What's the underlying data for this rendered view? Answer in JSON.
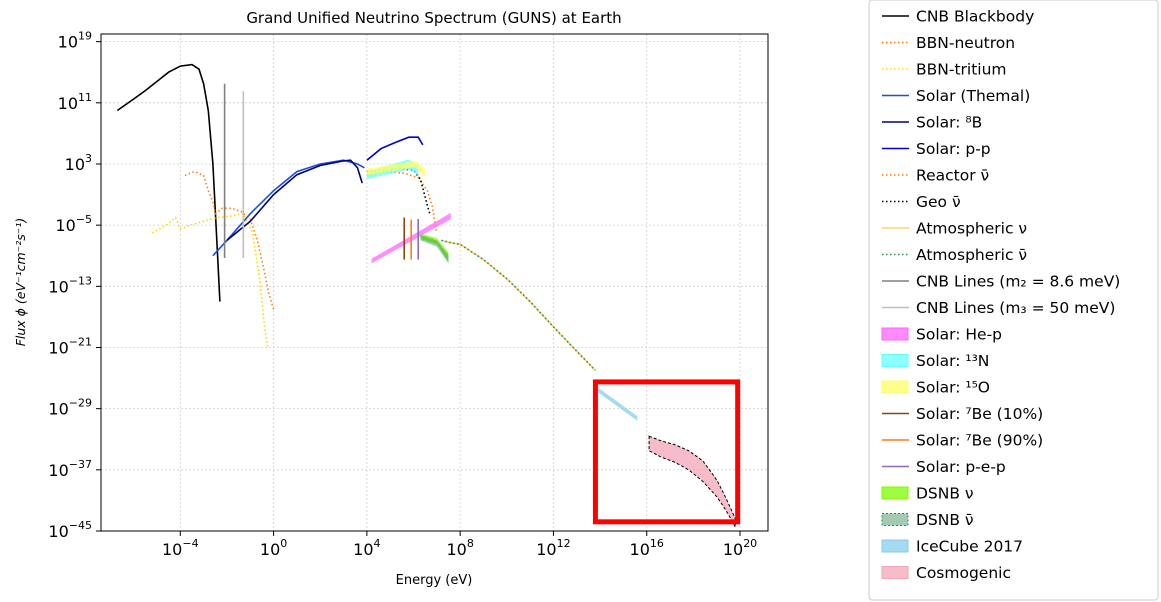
{
  "chart_data": {
    "type": "line",
    "title": "Grand Unified Neutrino Spectrum (GUNS) at Earth",
    "xlabel": "Energy (eV)",
    "ylabel": "Flux ϕ  (eV⁻¹cm⁻²s⁻¹)",
    "xscale": "log",
    "yscale": "log",
    "xlim_exp": [
      -7.4,
      21.2
    ],
    "ylim_exp": [
      -45,
      20
    ],
    "xticks": [
      {
        "base": "10",
        "exp": "−4",
        "v": -4
      },
      {
        "base": "10",
        "exp": "0",
        "v": 0
      },
      {
        "base": "10",
        "exp": "4",
        "v": 4
      },
      {
        "base": "10",
        "exp": "8",
        "v": 8
      },
      {
        "base": "10",
        "exp": "12",
        "v": 12
      },
      {
        "base": "10",
        "exp": "16",
        "v": 16
      },
      {
        "base": "10",
        "exp": "20",
        "v": 20
      }
    ],
    "yticks": [
      {
        "base": "10",
        "exp": "19",
        "v": 19
      },
      {
        "base": "10",
        "exp": "11",
        "v": 11
      },
      {
        "base": "10",
        "exp": "3",
        "v": 3
      },
      {
        "base": "10",
        "exp": "−5",
        "v": -5
      },
      {
        "base": "10",
        "exp": "−13",
        "v": -13
      },
      {
        "base": "10",
        "exp": "−21",
        "v": -21
      },
      {
        "base": "10",
        "exp": "−29",
        "v": -29
      },
      {
        "base": "10",
        "exp": "−37",
        "v": -37
      },
      {
        "base": "10",
        "exp": "−45",
        "v": -45
      }
    ],
    "grid": true,
    "legend_position": "outside-right",
    "highlight_box": {
      "x_exp": [
        13.8,
        19.9
      ],
      "y_exp": [
        -43.8,
        -25.5
      ],
      "color": "#ff0000"
    },
    "series": [
      {
        "name": "CNB Blackbody",
        "color": "#000000",
        "style": "solid",
        "x_exp": [
          -6.7,
          -6,
          -5.5,
          -5,
          -4.5,
          -4,
          -3.5,
          -3.2,
          -3,
          -2.8,
          -2.6,
          -2.4,
          -2.3
        ],
        "y_exp": [
          10,
          11.5,
          12.6,
          13.8,
          15,
          15.8,
          16,
          15.4,
          13.5,
          10,
          3,
          -9,
          -15
        ]
      },
      {
        "name": "BBN-neutron",
        "color": "#ff7f0e",
        "style": "dotted",
        "x_exp": [
          -3.8,
          -3.4,
          -3,
          -2.8,
          -2.6,
          -2.5,
          -2.2,
          -1.8,
          -1.4,
          -1,
          -0.7,
          -0.4,
          -0.2,
          0
        ],
        "y_exp": [
          1.5,
          2,
          1.5,
          -0.5,
          -2,
          -3.5,
          -2.8,
          -2.8,
          -3.2,
          -4.2,
          -7,
          -11,
          -14,
          -16
        ]
      },
      {
        "name": "BBN-tritium",
        "color": "#ffd700",
        "style": "dotted",
        "x_exp": [
          -5.2,
          -4.6,
          -4.2,
          -4.0,
          -3.6,
          -3,
          -2.4,
          -1.8,
          -1.3,
          -0.9,
          -0.6,
          -0.4,
          -0.25
        ],
        "y_exp": [
          -6,
          -5,
          -4,
          -5.5,
          -5,
          -4.5,
          -4,
          -3.8,
          -3.5,
          -6,
          -12,
          -18,
          -21
        ]
      },
      {
        "name": "Solar (Themal)",
        "color": "#1f4fd1",
        "style": "solid",
        "x_exp": [
          -2.6,
          -2,
          -1,
          0,
          1,
          2,
          3,
          3.6,
          3.9
        ],
        "y_exp": [
          -9,
          -7,
          -3.5,
          -0.5,
          2,
          3,
          3.5,
          3,
          2.5
        ]
      },
      {
        "name": "Solar: ⁸B",
        "color": "#000080",
        "style": "solid",
        "x_exp": [
          -2,
          -1,
          0,
          1,
          2,
          3,
          3.3,
          3.6,
          3.8
        ],
        "y_exp": [
          -7,
          -4.5,
          -1,
          1.6,
          2.8,
          3.4,
          3.5,
          2.5,
          0.5
        ]
      },
      {
        "name": "Solar: p-p",
        "color": "#0000cd",
        "style": "solid",
        "x_exp": [
          4,
          4.6,
          5.2,
          5.8,
          6.2,
          6.4
        ],
        "y_exp": [
          3.5,
          5,
          5.8,
          6.5,
          6.5,
          5.5
        ]
      },
      {
        "name": "Reactor ν̄",
        "color": "#ff7f0e",
        "style": "dotted",
        "x_exp": [
          4,
          4.8,
          5.6,
          6.2,
          6.6,
          6.8,
          7.0
        ],
        "y_exp": [
          1.5,
          2,
          1.8,
          1.2,
          -0.5,
          -2.5,
          -6
        ]
      },
      {
        "name": "Geo ν̄",
        "color": "#000000",
        "style": "dotted",
        "x_exp": [
          4,
          4.8,
          5.4,
          6,
          6.3,
          6.6,
          6.7
        ],
        "y_exp": [
          2,
          2.2,
          2.4,
          2.2,
          1,
          -2.5,
          -3.5
        ]
      },
      {
        "name": "Atmospheric ν",
        "color": "#ffd36b",
        "style": "solid",
        "x_exp": [
          7.2,
          7.6,
          8,
          9,
          10,
          11,
          12,
          13,
          13.8
        ],
        "y_exp": [
          -7,
          -7.3,
          -7.5,
          -9.5,
          -12,
          -15,
          -18.3,
          -21.5,
          -24
        ]
      },
      {
        "name": "Atmospheric ν̄",
        "color": "#2e8b57",
        "style": "dotted",
        "x_exp": [
          7.2,
          7.6,
          8,
          9,
          10,
          11,
          12,
          13,
          13.8
        ],
        "y_exp": [
          -7,
          -7.3,
          -7.5,
          -9.5,
          -12,
          -15,
          -18.3,
          -21.5,
          -24
        ]
      },
      {
        "name": "CNB Lines (m₂ = 8.6 meV)",
        "color": "#808080",
        "style": "solid",
        "x_exp": [
          -2.1,
          -2.1
        ],
        "y_exp": [
          -9.3,
          13.5
        ]
      },
      {
        "name": "CNB Lines (m₃ = 50 meV)",
        "color": "#c0c0c0",
        "style": "solid",
        "x_exp": [
          -1.3,
          -1.3
        ],
        "y_exp": [
          -9.3,
          12.5
        ]
      },
      {
        "name": "Solar: He-p",
        "color": "#ff66ff",
        "style": "band",
        "x_exp": [
          4.2,
          7.6
        ],
        "y_lo": [
          -10,
          -4.2
        ],
        "y_hi": [
          -9.4,
          -3.4
        ]
      },
      {
        "name": "Solar: ¹³N",
        "color": "#66ffff",
        "style": "band",
        "x_exp": [
          4,
          5.8,
          6.2
        ],
        "y_lo": [
          1,
          2.3,
          1.5
        ],
        "y_hi": [
          2,
          3.6,
          2.8
        ]
      },
      {
        "name": "Solar: ¹⁵O",
        "color": "#ffff66",
        "style": "band",
        "x_exp": [
          4,
          6.1,
          6.5
        ],
        "y_lo": [
          1.5,
          2.6,
          1.2
        ],
        "y_hi": [
          2.4,
          3.4,
          2.4
        ]
      },
      {
        "name": "Solar: ⁷Be (10%)",
        "color": "#8b4513",
        "style": "solid",
        "x_exp": [
          5.6,
          5.6
        ],
        "y_exp": [
          -9.5,
          -4
        ]
      },
      {
        "name": "Solar: ⁷Be (90%)",
        "color": "#ff7f0e",
        "style": "solid",
        "x_exp": [
          5.9,
          5.9
        ],
        "y_exp": [
          -9.5,
          -4.3
        ]
      },
      {
        "name": "Solar: p-e-p",
        "color": "#9467bd",
        "style": "solid",
        "x_exp": [
          6.2,
          6.2
        ],
        "y_exp": [
          -9.5,
          -4.2
        ]
      },
      {
        "name": "DSNB ν",
        "color": "#7cfc00",
        "style": "band",
        "x_exp": [
          6.3,
          7,
          7.5
        ],
        "y_lo": [
          -6.8,
          -7.5,
          -9.8
        ],
        "y_hi": [
          -6.1,
          -6.7,
          -8.6
        ]
      },
      {
        "name": "DSNB ν̄",
        "color": "#2e8b57",
        "style": "band-dotted",
        "x_exp": [
          6.3,
          7,
          7.5
        ],
        "y_lo": [
          -7.0,
          -7.8,
          -10.0
        ],
        "y_hi": [
          -6.3,
          -7.0,
          -8.9
        ]
      },
      {
        "name": "IceCube 2017",
        "color": "#87ceeb",
        "style": "band",
        "x_exp": [
          13.8,
          15.6
        ],
        "y_lo": [
          -26.6,
          -30.6
        ],
        "y_hi": [
          -26.0,
          -30.0
        ]
      },
      {
        "name": "Cosmogenic",
        "color": "#f4a6b8",
        "style": "band",
        "x_exp": [
          16.1,
          16.6,
          17.2,
          17.8,
          18.4,
          19,
          19.4,
          19.8
        ],
        "y_lo": [
          -34.5,
          -35.3,
          -36,
          -37,
          -38.5,
          -40.5,
          -42.3,
          -44.5
        ],
        "y_hi": [
          -32.6,
          -33.2,
          -33.7,
          -34.5,
          -35.8,
          -38.3,
          -40.7,
          -43.4
        ]
      }
    ]
  }
}
